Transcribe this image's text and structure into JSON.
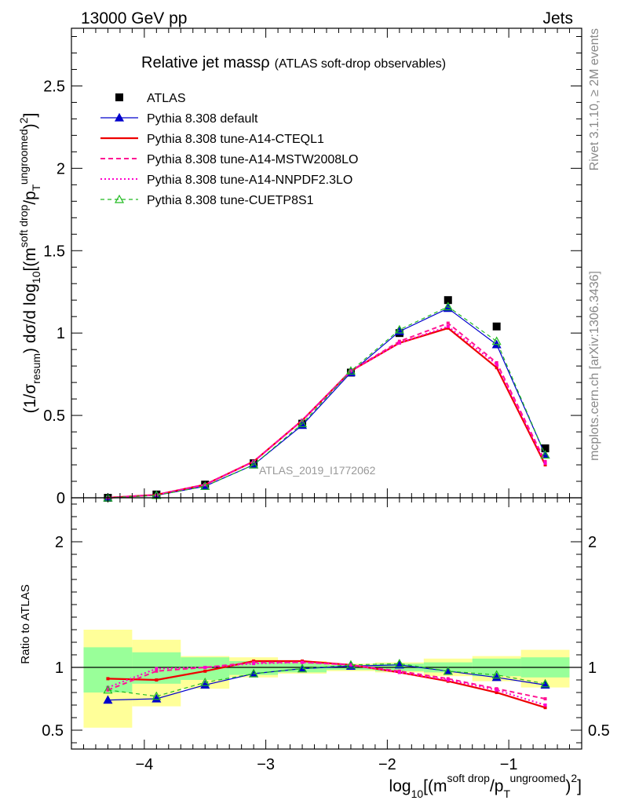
{
  "header": {
    "left": "13000 GeV pp",
    "right": "Jets"
  },
  "side_labels": {
    "rivet": "Rivet 3.1.10, ≥ 2M events",
    "mcplots": "mcplots.cern.ch [arXiv:1306.3436]"
  },
  "title_main": "Relative jet massρ",
  "title_sub": "(ATLAS soft-drop observables)",
  "watermark": "ATLAS_2019_I1772062",
  "axes": {
    "ylabel_main": {
      "p1": "(1/σ",
      "sub1": "resum",
      "p2": ") dσ/d log",
      "sub2": "10",
      "p3": "[(m",
      "sup1": "soft drop",
      "p4": "/p",
      "sub3": "T",
      "sup2": "ungroomed",
      "p5": ")",
      "sup3": "2",
      "p6": "]"
    },
    "ylabel_ratio": "Ratio to ATLAS",
    "xlabel": {
      "p1": "log",
      "sub1": "10",
      "p2": "[(m",
      "sup1": "soft drop",
      "p3": "/p",
      "sub2": "T",
      "sup2": "ungroomed",
      "p4": ")",
      "sup3": "2",
      "p5": "]"
    }
  },
  "colors": {
    "data": "#000000",
    "default": "#0000cc",
    "cteql1": "#ee0000",
    "mstw": "#ff1493",
    "nnpdf": "#ff00cc",
    "cuetp": "#22bb22",
    "band_inner": "#99ff99",
    "band_outer": "#ffff99"
  },
  "chart_data": [
    {
      "type": "line",
      "panel": "main",
      "title": "Relative jet massρ (ATLAS soft-drop observables)",
      "xlim": [
        -4.6,
        -0.4
      ],
      "ylim": [
        0,
        2.85
      ],
      "yticks": [
        "0",
        "0.5",
        "1",
        "1.5",
        "2",
        "2.5"
      ],
      "ytick_values": [
        0,
        0.5,
        1,
        1.5,
        2,
        2.5
      ],
      "x": [
        -4.3,
        -3.9,
        -3.5,
        -3.1,
        -2.7,
        -2.3,
        -1.9,
        -1.5,
        -1.1,
        -0.7
      ],
      "series": [
        {
          "name": "ATLAS",
          "key": "data",
          "style": "square",
          "values": [
            0.0,
            0.02,
            0.08,
            0.21,
            0.45,
            0.76,
            1.0,
            1.2,
            1.04,
            0.3
          ]
        },
        {
          "name": "Pythia 8.308 default",
          "key": "default",
          "style": "solid-thin-triangle",
          "values": [
            0.0,
            0.015,
            0.07,
            0.2,
            0.44,
            0.76,
            1.01,
            1.15,
            0.93,
            0.26
          ]
        },
        {
          "name": "Pythia 8.308 tune-A14-CTEQL1",
          "key": "cteql1",
          "style": "solid-thick",
          "values": [
            0.0,
            0.018,
            0.08,
            0.22,
            0.47,
            0.77,
            0.94,
            1.03,
            0.79,
            0.2
          ]
        },
        {
          "name": "Pythia 8.308 tune-A14-MSTW2008LO",
          "key": "mstw",
          "style": "dashed",
          "values": [
            0.0,
            0.018,
            0.08,
            0.22,
            0.47,
            0.77,
            0.95,
            1.06,
            0.82,
            0.22
          ]
        },
        {
          "name": "Pythia 8.308 tune-A14-NNPDF2.3LO",
          "key": "nnpdf",
          "style": "dotted",
          "values": [
            0.0,
            0.018,
            0.08,
            0.22,
            0.47,
            0.77,
            0.94,
            1.04,
            0.81,
            0.21
          ]
        },
        {
          "name": "Pythia 8.308 tune-CUETP8S1",
          "key": "cuetp",
          "style": "dashed-open-triangle",
          "values": [
            0.0,
            0.015,
            0.07,
            0.2,
            0.45,
            0.77,
            1.02,
            1.16,
            0.95,
            0.26
          ]
        }
      ]
    },
    {
      "type": "line",
      "panel": "ratio",
      "ylabel": "Ratio to ATLAS",
      "xlim": [
        -4.6,
        -0.4
      ],
      "ylim": [
        0.35,
        2.35
      ],
      "yticks": [
        "0.5",
        "1",
        "2"
      ],
      "ytick_values": [
        0.5,
        1,
        2
      ],
      "xticks": [
        "−4",
        "−3",
        "−2",
        "−1"
      ],
      "xtick_values": [
        -4,
        -3,
        -2,
        -1
      ],
      "x": [
        -4.3,
        -3.9,
        -3.5,
        -3.1,
        -2.7,
        -2.3,
        -1.9,
        -1.5,
        -1.1,
        -0.7
      ],
      "bin_edges": [
        -4.5,
        -4.1,
        -3.7,
        -3.3,
        -2.9,
        -2.5,
        -2.1,
        -1.7,
        -1.3,
        -0.9,
        -0.5
      ],
      "band_inner": [
        [
          0.8,
          1.16
        ],
        [
          0.87,
          1.12
        ],
        [
          0.9,
          1.08
        ],
        [
          0.94,
          1.05
        ],
        [
          0.96,
          1.04
        ],
        [
          0.98,
          1.02
        ],
        [
          0.97,
          1.03
        ],
        [
          0.96,
          1.04
        ],
        [
          0.93,
          1.07
        ],
        [
          0.92,
          1.08
        ]
      ],
      "band_outer": [
        [
          0.52,
          1.3
        ],
        [
          0.69,
          1.22
        ],
        [
          0.83,
          1.09
        ],
        [
          0.92,
          1.08
        ],
        [
          0.95,
          1.05
        ],
        [
          0.97,
          1.03
        ],
        [
          0.96,
          1.04
        ],
        [
          0.93,
          1.07
        ],
        [
          0.89,
          1.09
        ],
        [
          0.84,
          1.14
        ]
      ],
      "series": [
        {
          "name": "Pythia 8.308 default",
          "key": "default",
          "values": [
            0.74,
            0.75,
            0.86,
            0.95,
            0.99,
            1.01,
            1.02,
            0.97,
            0.92,
            0.86
          ]
        },
        {
          "name": "Pythia 8.308 tune-A14-CTEQL1",
          "key": "cteql1",
          "values": [
            0.91,
            0.9,
            0.97,
            1.05,
            1.05,
            1.02,
            0.96,
            0.89,
            0.8,
            0.68
          ]
        },
        {
          "name": "Pythia 8.308 tune-A14-MSTW2008LO",
          "key": "mstw",
          "values": [
            0.82,
            0.97,
            1.0,
            1.04,
            1.04,
            1.02,
            0.97,
            0.91,
            0.83,
            0.75
          ]
        },
        {
          "name": "Pythia 8.308 tune-A14-NNPDF2.3LO",
          "key": "nnpdf",
          "values": [
            0.84,
            0.99,
            1.0,
            1.03,
            1.04,
            1.02,
            0.96,
            0.9,
            0.82,
            0.7
          ]
        },
        {
          "name": "Pythia 8.308 tune-CUETP8S1",
          "key": "cuetp",
          "values": [
            0.82,
            0.77,
            0.88,
            0.95,
            0.99,
            1.02,
            1.03,
            0.97,
            0.94,
            0.87
          ]
        }
      ]
    }
  ]
}
